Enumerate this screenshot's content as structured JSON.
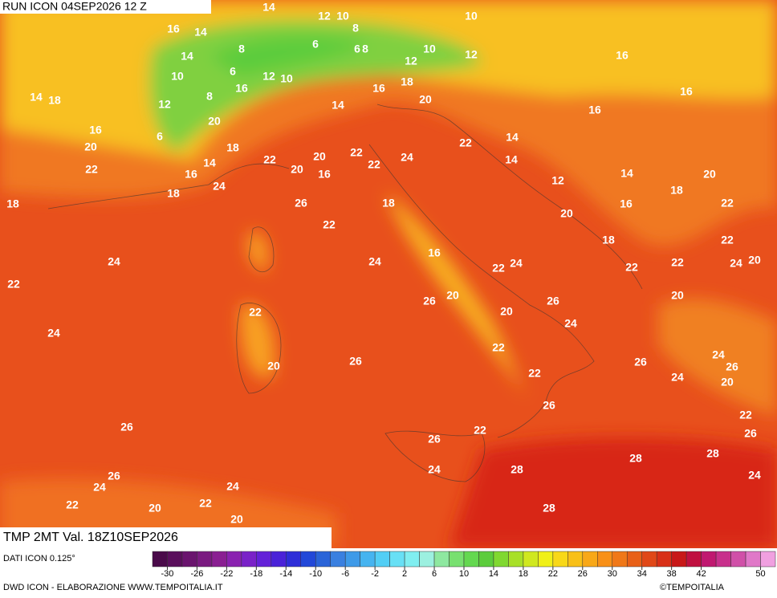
{
  "header": {
    "run": "RUN ICON 04SEP2026 12 Z"
  },
  "footer": {
    "variable": "TMP 2MT Val. 18Z10SEP2026",
    "source": "DATI ICON 0.125°",
    "credit": "DWD ICON - ELABORAZIONE WWW.TEMPOITALIA.IT",
    "brand": "©TEMPOITALIA"
  },
  "colorbar": {
    "range": [
      -32,
      52
    ],
    "ticks": [
      -30,
      -26,
      -22,
      -18,
      -14,
      -10,
      -6,
      -2,
      2,
      6,
      10,
      14,
      18,
      22,
      26,
      30,
      34,
      38,
      42,
      50
    ],
    "colors": [
      "#4a0a4a",
      "#5a0f5c",
      "#6a146e",
      "#7a1a80",
      "#8a1f92",
      "#8a22b0",
      "#7a22c8",
      "#6422d8",
      "#4a22d8",
      "#2e2ed8",
      "#2248d8",
      "#2a64d8",
      "#3a80e0",
      "#3e9ae8",
      "#46b4f0",
      "#52cef5",
      "#68e0f5",
      "#80eef0",
      "#9cf0e0",
      "#8ee8a0",
      "#78e070",
      "#64d850",
      "#5ccc3c",
      "#80d830",
      "#a8e028",
      "#d0e820",
      "#f0f018",
      "#f8d818",
      "#f8c018",
      "#f8a818",
      "#f89018",
      "#f07818",
      "#e86018",
      "#e04818",
      "#d83018",
      "#c81818",
      "#c01040",
      "#c01870",
      "#c8308c",
      "#d050a8",
      "#e078c8",
      "#f0a0e0"
    ]
  },
  "map": {
    "labels": [
      14,
      12,
      10,
      10,
      16,
      14,
      8,
      14,
      8,
      6,
      6,
      8,
      10,
      12,
      12,
      16,
      10,
      6,
      12,
      10,
      16,
      16,
      18,
      14,
      18,
      12,
      8,
      20,
      16,
      16,
      14,
      20,
      16,
      6,
      22,
      14,
      20,
      18,
      22,
      20,
      22,
      24,
      14,
      22,
      14,
      22,
      20,
      16,
      16,
      24,
      18,
      12,
      14,
      20,
      18,
      26,
      18,
      18,
      16,
      22,
      20,
      22,
      18,
      22,
      24,
      16,
      24,
      22,
      24,
      22,
      22,
      24,
      20,
      22,
      20,
      26,
      26,
      20,
      22,
      20,
      24,
      24,
      22,
      26,
      20,
      26,
      24,
      26,
      24,
      20,
      22,
      26,
      22,
      26,
      22,
      26,
      26,
      28,
      28,
      24,
      28,
      26,
      24,
      24,
      24,
      22,
      20,
      22,
      28,
      20
    ]
  }
}
